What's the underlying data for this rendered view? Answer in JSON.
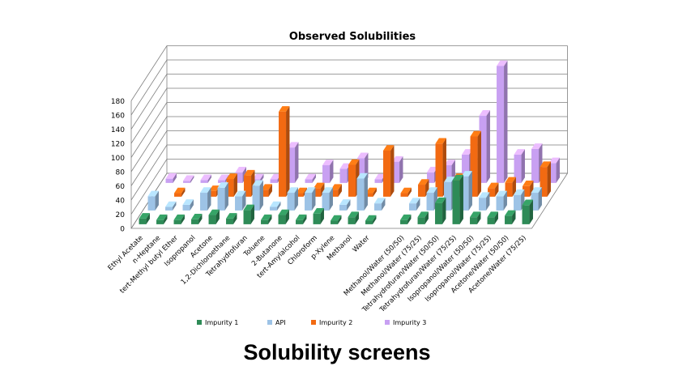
{
  "slide_title": "Solubility screens",
  "chart_data": {
    "type": "bar",
    "title": "Observed Solubilities",
    "xlabel": "",
    "ylabel": "",
    "ylim": [
      0,
      180
    ],
    "yticks": [
      0,
      20,
      40,
      60,
      80,
      100,
      120,
      140,
      160,
      180
    ],
    "grid": true,
    "legend_position": "bottom",
    "categories": [
      "Ethyl Acetate",
      "n-Heptane",
      "tert-Methyl butyl Ether",
      "Isopropanol",
      "Acetone",
      "1,2-Dichloroethane",
      "Tetrahydrofuran",
      "Toluene",
      "2-Butanone",
      "tert-Amylalcohol",
      "Chloroform",
      "p-Xylene",
      "Methanol",
      "Water",
      "",
      "Methanol/Water (50/50)",
      "Methanol/Water (75/25)",
      "Tetrahydrofuran/Water (50/50)",
      "Tetrahydrofuran/Water (75/25)",
      "Isopropanol/Water (50/50)",
      "Isopropanol/Water (75/25)",
      "Acetone/Water (50/50)",
      "Acetone/Water (75/25)"
    ],
    "series": [
      {
        "name": "Impurity 1",
        "color": "#2e8b57",
        "values": [
          8,
          6,
          6,
          7,
          13,
          8,
          20,
          6,
          13,
          6,
          15,
          5,
          10,
          5,
          0,
          6,
          10,
          30,
          62,
          10,
          10,
          12,
          27
        ]
      },
      {
        "name": "API",
        "color": "#9dc3e6",
        "values": [
          20,
          5,
          8,
          25,
          32,
          20,
          35,
          5,
          25,
          25,
          25,
          8,
          45,
          10,
          0,
          10,
          25,
          40,
          48,
          18,
          20,
          22,
          25
        ]
      },
      {
        "name": "Impurity 2",
        "color": "#f26a12",
        "values": [
          0,
          5,
          0,
          8,
          25,
          30,
          10,
          120,
          5,
          12,
          10,
          45,
          5,
          65,
          5,
          17,
          75,
          25,
          85,
          12,
          20,
          15,
          42
        ]
      },
      {
        "name": "Impurity 3",
        "color": "#c8a0f2",
        "values": [
          6,
          3,
          4,
          4,
          15,
          5,
          5,
          50,
          5,
          25,
          20,
          35,
          5,
          30,
          0,
          15,
          25,
          40,
          95,
          165,
          40,
          48,
          28
        ]
      }
    ]
  }
}
